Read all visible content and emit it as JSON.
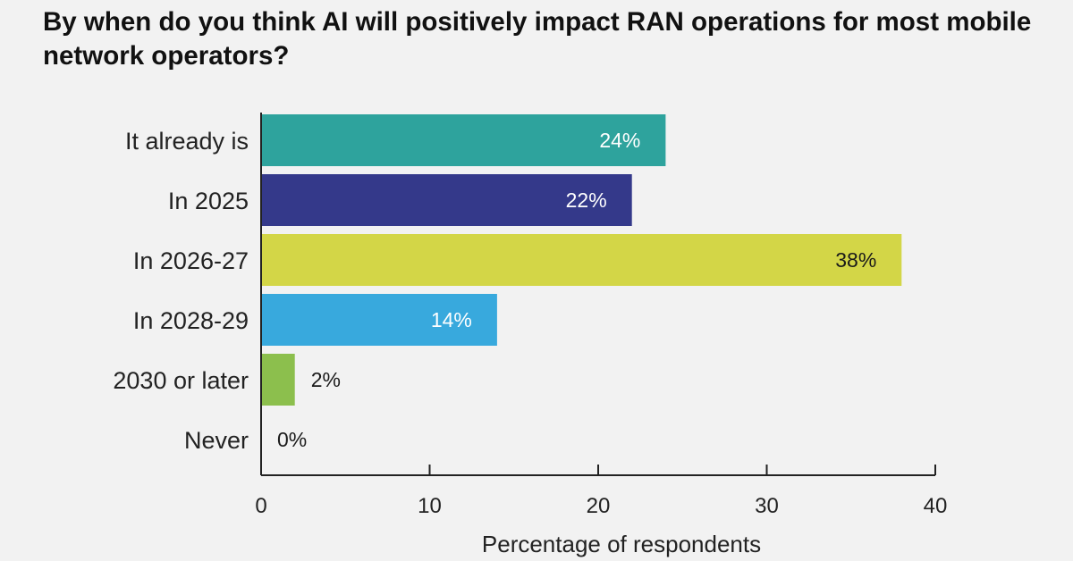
{
  "title": "By when do you think AI will positively impact RAN operations for most mobile network operators?",
  "chart_data": {
    "type": "bar",
    "orientation": "horizontal",
    "title": "By when do you think AI will positively impact RAN operations for most mobile network operators?",
    "categories": [
      "It already is",
      "In 2025",
      "In 2026-27",
      "In 2028-29",
      "2030 or later",
      "Never"
    ],
    "values": [
      24,
      22,
      38,
      14,
      2,
      0
    ],
    "value_labels": [
      "24%",
      "22%",
      "38%",
      "14%",
      "2%",
      "0%"
    ],
    "colors": [
      "#2ea39d",
      "#34398a",
      "#d3d647",
      "#38a9dd",
      "#8cbf4d",
      "#8cbf4d"
    ],
    "label_colors": [
      "#ffffff",
      "#ffffff",
      "#1a1a1a",
      "#ffffff",
      "#1a1a1a",
      "#1a1a1a"
    ],
    "xlabel": "Percentage of respondents",
    "ylabel": "",
    "xlim": [
      0,
      40
    ],
    "xticks": [
      0,
      10,
      20,
      30,
      40
    ],
    "grid": false,
    "legend": "none"
  }
}
